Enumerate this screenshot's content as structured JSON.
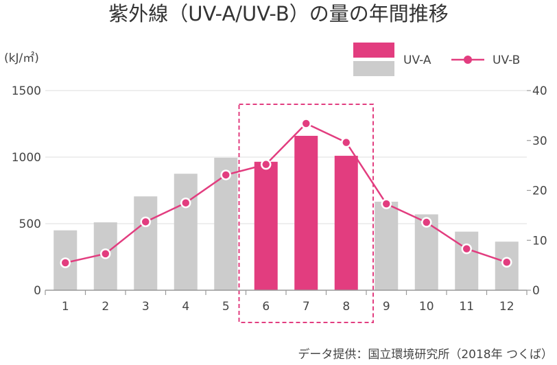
{
  "chart_data": {
    "type": "bar",
    "title": "紫外線（UV-A/UV-B）の量の年間推移",
    "y_unit": "(kJ/㎡)",
    "categories": [
      "1",
      "2",
      "3",
      "4",
      "5",
      "6",
      "7",
      "8",
      "9",
      "10",
      "11",
      "12"
    ],
    "series": [
      {
        "name": "UV-A",
        "type": "bar",
        "axis": "left",
        "values": [
          450,
          510,
          705,
          875,
          995,
          965,
          1160,
          1010,
          665,
          570,
          440,
          365
        ]
      },
      {
        "name": "UV-B",
        "type": "line",
        "axis": "right",
        "values": [
          5.5,
          7.3,
          13.7,
          17.5,
          23.1,
          25.2,
          33.4,
          29.6,
          17.3,
          13.6,
          8.3,
          5.6
        ]
      }
    ],
    "y_left": {
      "min": 0,
      "max": 1500,
      "ticks": [
        0,
        500,
        1000,
        1500
      ]
    },
    "y_right": {
      "min": 0,
      "max": 40,
      "ticks": [
        0,
        10,
        20,
        30,
        40
      ]
    },
    "highlight_categories": [
      "6",
      "7",
      "8"
    ],
    "grid": true,
    "legend_position": "top-right",
    "source": "データ提供：国立環境研究所（2018年 つくば）"
  },
  "colors": {
    "bar_default": "#cccccc",
    "bar_highlight": "#e23d7f",
    "line": "#e23d7f",
    "grid": "#dddddd",
    "axis": "#999999",
    "text": "#444444"
  }
}
